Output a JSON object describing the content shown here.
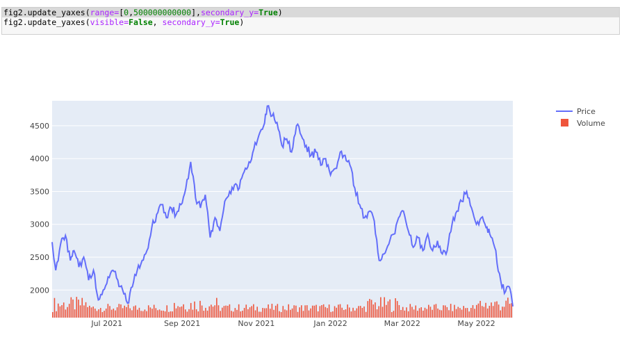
{
  "code_cell": {
    "lines": [
      {
        "fn": "fig2.update_yaxes(",
        "a1": "range",
        "eq1": "=",
        "v1": "[",
        "n1": "0",
        "c1": ",",
        "n2": "500000000000",
        "v1e": "],",
        "a2": "secondary_y",
        "eq2": "=",
        "k2": "True",
        "end": ")"
      },
      {
        "fn": "fig2.update_yaxes(",
        "a1": "visible",
        "eq1": "=",
        "k1": "False",
        "sep": ", ",
        "a2": "secondary_y",
        "eq2": "=",
        "k2": "True",
        "end": ")"
      }
    ]
  },
  "chart_data": {
    "type": "line+bar",
    "x_start": "2021-05-17",
    "x_end": "2022-05-31",
    "x_ticks": [
      "Jul 2021",
      "Sep 2021",
      "Nov 2021",
      "Jan 2022",
      "Mar 2022",
      "May 2022"
    ],
    "x_tick_dates": [
      "2021-07-01",
      "2021-09-01",
      "2021-11-01",
      "2022-01-01",
      "2022-03-01",
      "2022-05-01"
    ],
    "y_ticks": [
      2000,
      2500,
      3000,
      3500,
      4000,
      4500
    ],
    "ylim": [
      1580,
      4880
    ],
    "legend_placement": "top-right",
    "series": [
      {
        "name": "Price",
        "type": "line",
        "color": "#636efa",
        "x": [
          "2021-05-17",
          "2021-05-20",
          "2021-05-24",
          "2021-05-28",
          "2021-06-01",
          "2021-06-04",
          "2021-06-08",
          "2021-06-12",
          "2021-06-16",
          "2021-06-20",
          "2021-06-24",
          "2021-06-28",
          "2021-07-02",
          "2021-07-06",
          "2021-07-10",
          "2021-07-14",
          "2021-07-18",
          "2021-07-22",
          "2021-07-26",
          "2021-07-30",
          "2021-08-03",
          "2021-08-07",
          "2021-08-11",
          "2021-08-15",
          "2021-08-19",
          "2021-08-23",
          "2021-08-27",
          "2021-08-31",
          "2021-09-04",
          "2021-09-08",
          "2021-09-12",
          "2021-09-16",
          "2021-09-20",
          "2021-09-24",
          "2021-09-28",
          "2021-10-02",
          "2021-10-06",
          "2021-10-10",
          "2021-10-14",
          "2021-10-18",
          "2021-10-22",
          "2021-10-26",
          "2021-10-30",
          "2021-11-03",
          "2021-11-07",
          "2021-11-10",
          "2021-11-14",
          "2021-11-18",
          "2021-11-22",
          "2021-11-26",
          "2021-11-30",
          "2021-12-04",
          "2021-12-08",
          "2021-12-12",
          "2021-12-16",
          "2021-12-20",
          "2021-12-24",
          "2021-12-28",
          "2022-01-01",
          "2022-01-05",
          "2022-01-09",
          "2022-01-13",
          "2022-01-17",
          "2022-01-21",
          "2022-01-25",
          "2022-01-29",
          "2022-02-02",
          "2022-02-06",
          "2022-02-10",
          "2022-02-14",
          "2022-02-18",
          "2022-02-22",
          "2022-02-26",
          "2022-03-02",
          "2022-03-06",
          "2022-03-10",
          "2022-03-14",
          "2022-03-18",
          "2022-03-22",
          "2022-03-26",
          "2022-03-30",
          "2022-04-03",
          "2022-04-07",
          "2022-04-11",
          "2022-04-15",
          "2022-04-19",
          "2022-04-23",
          "2022-04-27",
          "2022-05-01",
          "2022-05-05",
          "2022-05-09",
          "2022-05-12",
          "2022-05-16",
          "2022-05-20",
          "2022-05-24",
          "2022-05-28",
          "2022-05-31"
        ],
        "values": [
          2730,
          2300,
          2700,
          2830,
          2450,
          2600,
          2350,
          2500,
          2150,
          2300,
          1850,
          2000,
          2200,
          2300,
          2150,
          2000,
          1800,
          2050,
          2300,
          2450,
          2600,
          2950,
          3150,
          3300,
          3100,
          3250,
          3150,
          3300,
          3550,
          3950,
          3400,
          3250,
          3450,
          2800,
          3100,
          2900,
          3350,
          3500,
          3600,
          3550,
          3800,
          3950,
          4150,
          4350,
          4500,
          4800,
          4650,
          4550,
          4200,
          4300,
          4100,
          4500,
          4350,
          4200,
          4050,
          4100,
          3900,
          4000,
          3750,
          3850,
          4100,
          4050,
          3900,
          3550,
          3300,
          3100,
          3200,
          3050,
          2450,
          2550,
          2700,
          2850,
          3100,
          3200,
          2900,
          2650,
          2800,
          2600,
          2850,
          2600,
          2750,
          2550,
          2600,
          3000,
          3200,
          3350,
          3500,
          3250,
          3000,
          3100,
          2950,
          2850,
          2650,
          2250,
          1950,
          2050,
          1750
        ]
      },
      {
        "name": "Volume",
        "type": "bar",
        "color": "#ef553b",
        "secondary_y": true,
        "ylim": [
          0,
          500000000000
        ],
        "visible_axis": false
      }
    ]
  }
}
